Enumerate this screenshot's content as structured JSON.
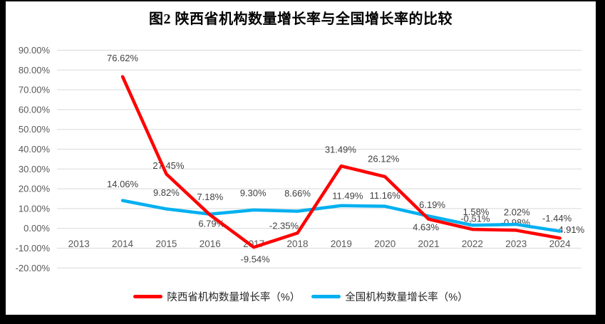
{
  "title": "图2 陕西省机构数量增长率与全国增长率的比较",
  "colors": {
    "shaanxi": "#FF0000",
    "national": "#00B0F0",
    "gridline": "#D9D9D9",
    "axis_text": "#595959",
    "data_label_text": "#404040",
    "legend_text": "#262626",
    "leader_line": "#A6A6A6",
    "frame": "#000000",
    "background": "#FFFFFF"
  },
  "legend": {
    "items": [
      {
        "label": "陕西省机构数量增长率（%）",
        "color_key": "shaanxi"
      },
      {
        "label": "全国机构数量增长率（%）",
        "color_key": "national"
      }
    ]
  },
  "chart_data": {
    "type": "line",
    "title": "图2 陕西省机构数量增长率与全国增长率的比较",
    "categories": [
      "2013",
      "2014",
      "2015",
      "2016",
      "2017",
      "2018",
      "2019",
      "2020",
      "2021",
      "2022",
      "2023",
      "2024"
    ],
    "series": [
      {
        "name": "陕西省机构数量增长率（%）",
        "color_key": "shaanxi",
        "values": [
          null,
          76.62,
          27.45,
          6.79,
          -9.54,
          -2.35,
          31.49,
          26.12,
          4.63,
          -0.51,
          -0.98,
          -4.91
        ],
        "labels": [
          null,
          "76.62%",
          "27.45%",
          "6.79%",
          "-9.54%",
          "-2.35%",
          "31.49%",
          "26.12%",
          "4.63%",
          "-0.51%",
          "-0.98%",
          "-4.91%"
        ]
      },
      {
        "name": "全国机构数量增长率（%）",
        "color_key": "national",
        "values": [
          null,
          14.06,
          9.82,
          7.18,
          9.3,
          8.66,
          11.49,
          11.16,
          6.19,
          1.58,
          2.02,
          -1.44
        ],
        "labels": [
          null,
          "14.06%",
          "9.82%",
          "7.18%",
          "9.30%",
          "8.66%",
          "11.49%",
          "11.16%",
          "6.19%",
          "1.58%",
          "2.02%",
          "-1.44%"
        ]
      }
    ],
    "ylim": [
      -20,
      90
    ],
    "ytick_step": 10,
    "ytick_format": "0.00%",
    "grid": true,
    "legend_position": "bottom",
    "xlabel": "",
    "ylabel": ""
  }
}
